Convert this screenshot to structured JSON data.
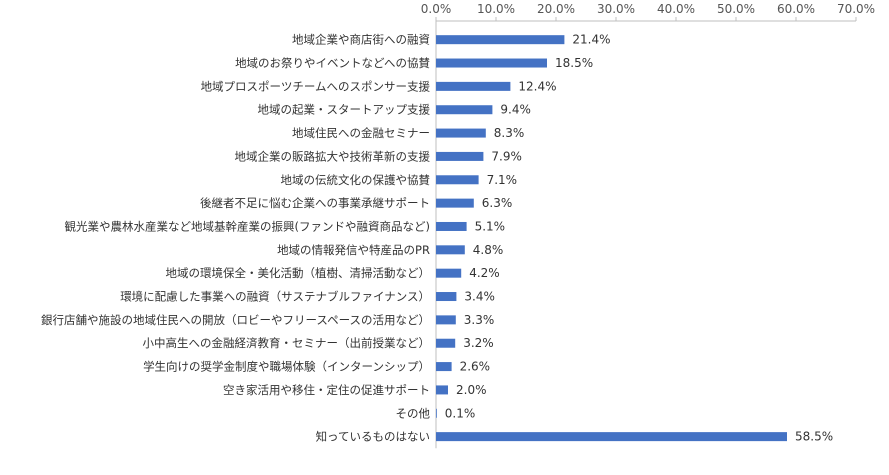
{
  "chart_data": {
    "type": "bar",
    "orientation": "horizontal",
    "categories": [
      "地域企業や商店街への融資",
      "地域のお祭りやイベントなどへの協賛",
      "地域プロスポーツチームへのスポンサー支援",
      "地域の起業・スタートアップ支援",
      "地域住民への金融セミナー",
      "地域企業の販路拡大や技術革新の支援",
      "地域の伝統文化の保護や協賛",
      "後継者不足に悩む企業への事業承継サポート",
      "観光業や農林水産業など地域基幹産業の振興(ファンドや融資商品など)",
      "地域の情報発信や特産品のPR",
      "地域の環境保全・美化活動（植樹、清掃活動など）",
      "環境に配慮した事業への融資（サステナブルファイナンス）",
      "銀行店舗や施設の地域住民への開放（ロビーやフリースペースの活用など）",
      "小中高生への金融経済教育・セミナー（出前授業など）",
      "学生向けの奨学金制度や職場体験（インターンシップ）",
      "空き家活用や移住・定住の促進サポート",
      "その他",
      "知っているものはない"
    ],
    "values": [
      21.4,
      18.5,
      12.4,
      9.4,
      8.3,
      7.9,
      7.1,
      6.3,
      5.1,
      4.8,
      4.2,
      3.4,
      3.3,
      3.2,
      2.6,
      2.0,
      0.1,
      58.5
    ],
    "value_labels": [
      "21.4%",
      "18.5%",
      "12.4%",
      "9.4%",
      "8.3%",
      "7.9%",
      "7.1%",
      "6.3%",
      "5.1%",
      "4.8%",
      "4.2%",
      "3.4%",
      "3.3%",
      "3.2%",
      "2.6%",
      "2.0%",
      "0.1%",
      "58.5%"
    ],
    "xlim": [
      0,
      70
    ],
    "x_ticks": [
      0,
      10,
      20,
      30,
      40,
      50,
      60,
      70
    ],
    "x_tick_labels": [
      "0.0%",
      "10.0%",
      "20.0%",
      "30.0%",
      "40.0%",
      "50.0%",
      "60.0%",
      "70.0%"
    ],
    "x_axis_position": "top",
    "grid": false,
    "legend": "none",
    "title": "",
    "xlabel": "",
    "ylabel": "",
    "colors": {
      "bar": "#4472C4",
      "axis": "#BFBFBF"
    }
  }
}
